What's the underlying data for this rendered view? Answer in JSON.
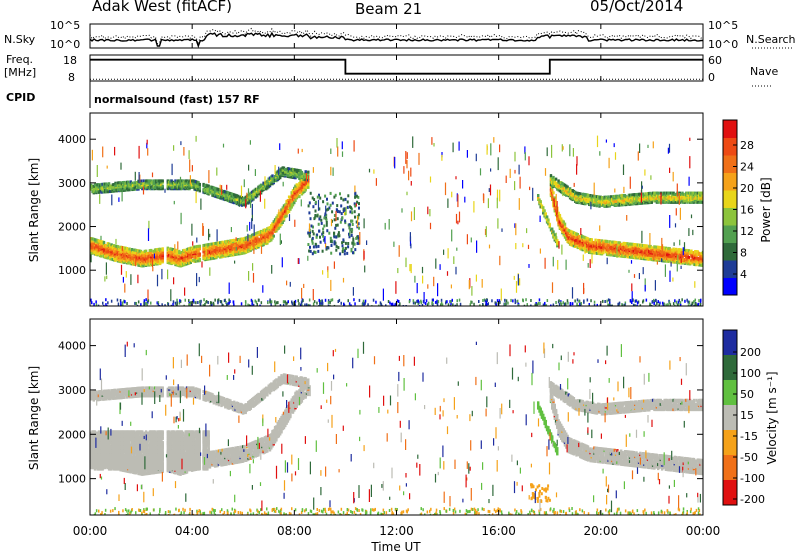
{
  "header": {
    "station": "Adak West (fitACF)",
    "beam": "Beam 21",
    "date": "05/Oct/2014"
  },
  "noise_panel": {
    "left_label": "N.Sky",
    "right_label": "N.Search",
    "left_ticks": [
      "10^5",
      "10^0"
    ],
    "right_ticks": [
      "10^5",
      "10^0"
    ]
  },
  "freq_panel": {
    "left_label_1": "Freq.",
    "left_label_2": "[MHz]",
    "right_label": "Nave",
    "left_ticks": [
      "18",
      "8"
    ],
    "right_ticks": [
      "60",
      "0"
    ],
    "cpid_label": "CPID",
    "cpid_text": "normalsound (fast) 157 RF",
    "freq_steps": [
      {
        "start_hour": 0,
        "end_hour": 10,
        "freq_mhz": 16.2
      },
      {
        "start_hour": 10,
        "end_hour": 18,
        "freq_mhz": 10.8
      },
      {
        "start_hour": 18,
        "end_hour": 24,
        "freq_mhz": 16.2
      }
    ],
    "nave_level": 4
  },
  "power_panel": {
    "ylabel": "Slant Range [km]",
    "yticks": [
      "4000",
      "3000",
      "2000",
      "1000"
    ],
    "colorbar_label": "Power [dB]",
    "colorbar_ticks": [
      "28",
      "24",
      "20",
      "16",
      "12",
      "8",
      "4"
    ],
    "colors": [
      "#0000ff",
      "#1e3c96",
      "#2f6a3a",
      "#52a050",
      "#8cc43c",
      "#e8d51a",
      "#f5a21a",
      "#f07018",
      "#ee4a14",
      "#e01010"
    ]
  },
  "velocity_panel": {
    "ylabel": "Slant Range [km]",
    "yticks": [
      "4000",
      "3000",
      "2000",
      "1000"
    ],
    "colorbar_label": "Velocity [m s⁻¹]",
    "colorbar_ticks": [
      "200",
      "100",
      "50",
      "15",
      "-15",
      "-50",
      "-100",
      "-200"
    ],
    "colors": [
      "#1e2ca0",
      "#2f6a3a",
      "#60c040",
      "#bcbcb4",
      "#f5a21a",
      "#f07018",
      "#e01010"
    ]
  },
  "xaxis": {
    "label": "Time UT",
    "ticks": [
      "00:00",
      "04:00",
      "08:00",
      "12:00",
      "16:00",
      "20:00",
      "00:00"
    ]
  },
  "chart_data": {
    "type": "heatmap",
    "title": "Adak West (fitACF)",
    "subtitle": "Beam 21",
    "date": "05/Oct/2014",
    "xlabel": "Time UT",
    "ylabel": "Slant Range [km]",
    "xlim_hours": [
      0,
      24
    ],
    "ylim_km": [
      180,
      4600
    ],
    "grid": false,
    "power_range_db": [
      0,
      30
    ],
    "velocity_range": [
      -250,
      250
    ],
    "echo_bands": [
      {
        "name": "main",
        "points": [
          [
            0,
            1600
          ],
          [
            1,
            1420
          ],
          [
            2,
            1300
          ],
          [
            3,
            1380
          ],
          [
            3.5,
            1300
          ],
          [
            4,
            1400
          ],
          [
            5,
            1500
          ],
          [
            6,
            1600
          ],
          [
            7,
            1850
          ],
          [
            7.5,
            2300
          ],
          [
            8,
            2800
          ],
          [
            8.5,
            3100
          ]
        ],
        "power_db": 26,
        "width_km": 340
      },
      {
        "name": "upper",
        "points": [
          [
            0,
            2900
          ],
          [
            2,
            3000
          ],
          [
            4,
            3000
          ],
          [
            6,
            2600
          ],
          [
            7.5,
            3300
          ],
          [
            8.5,
            3200
          ]
        ],
        "power_db": 14,
        "width_km": 200
      },
      {
        "name": "evening",
        "points": [
          [
            18,
            2900
          ],
          [
            18.3,
            2200
          ],
          [
            18.7,
            1800
          ],
          [
            19.5,
            1600
          ],
          [
            21,
            1500
          ],
          [
            22.5,
            1400
          ],
          [
            24,
            1300
          ]
        ],
        "power_db": 27,
        "width_km": 320
      },
      {
        "name": "evening_upper",
        "points": [
          [
            18,
            3100
          ],
          [
            19,
            2700
          ],
          [
            20,
            2600
          ],
          [
            22,
            2700
          ],
          [
            24,
            2700
          ]
        ],
        "power_db": 18,
        "width_km": 220
      },
      {
        "name": "diagonal_18",
        "points": [
          [
            17.5,
            2700
          ],
          [
            18,
            2000
          ],
          [
            18.3,
            1600
          ]
        ],
        "power_db": 18,
        "width_km": 150
      }
    ]
  }
}
